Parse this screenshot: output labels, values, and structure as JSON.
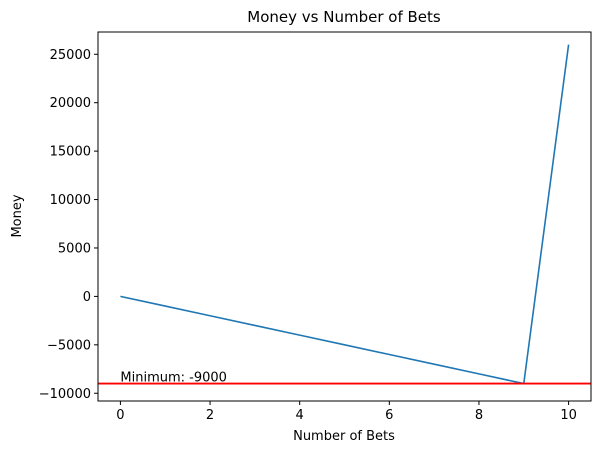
{
  "chart_data": {
    "type": "line",
    "title": "Money vs Number of Bets",
    "xlabel": "Number of Bets",
    "ylabel": "Money",
    "xlim": [
      -0.5,
      10.5
    ],
    "ylim": [
      -10800,
      27300
    ],
    "x_ticks": [
      0,
      2,
      4,
      6,
      8,
      10
    ],
    "y_ticks": [
      -10000,
      -5000,
      0,
      5000,
      10000,
      15000,
      20000,
      25000
    ],
    "grid": false,
    "series": [
      {
        "color": "#1f77b4",
        "x": [
          0,
          1,
          2,
          3,
          4,
          5,
          6,
          7,
          8,
          9,
          10
        ],
        "y": [
          0,
          -1000,
          -2000,
          -3000,
          -4000,
          -5000,
          -6000,
          -7000,
          -8000,
          -9000,
          26000
        ]
      }
    ],
    "reference_line": {
      "y": -9000,
      "color": "#ff0000",
      "label": "Minimum: -9000"
    }
  }
}
